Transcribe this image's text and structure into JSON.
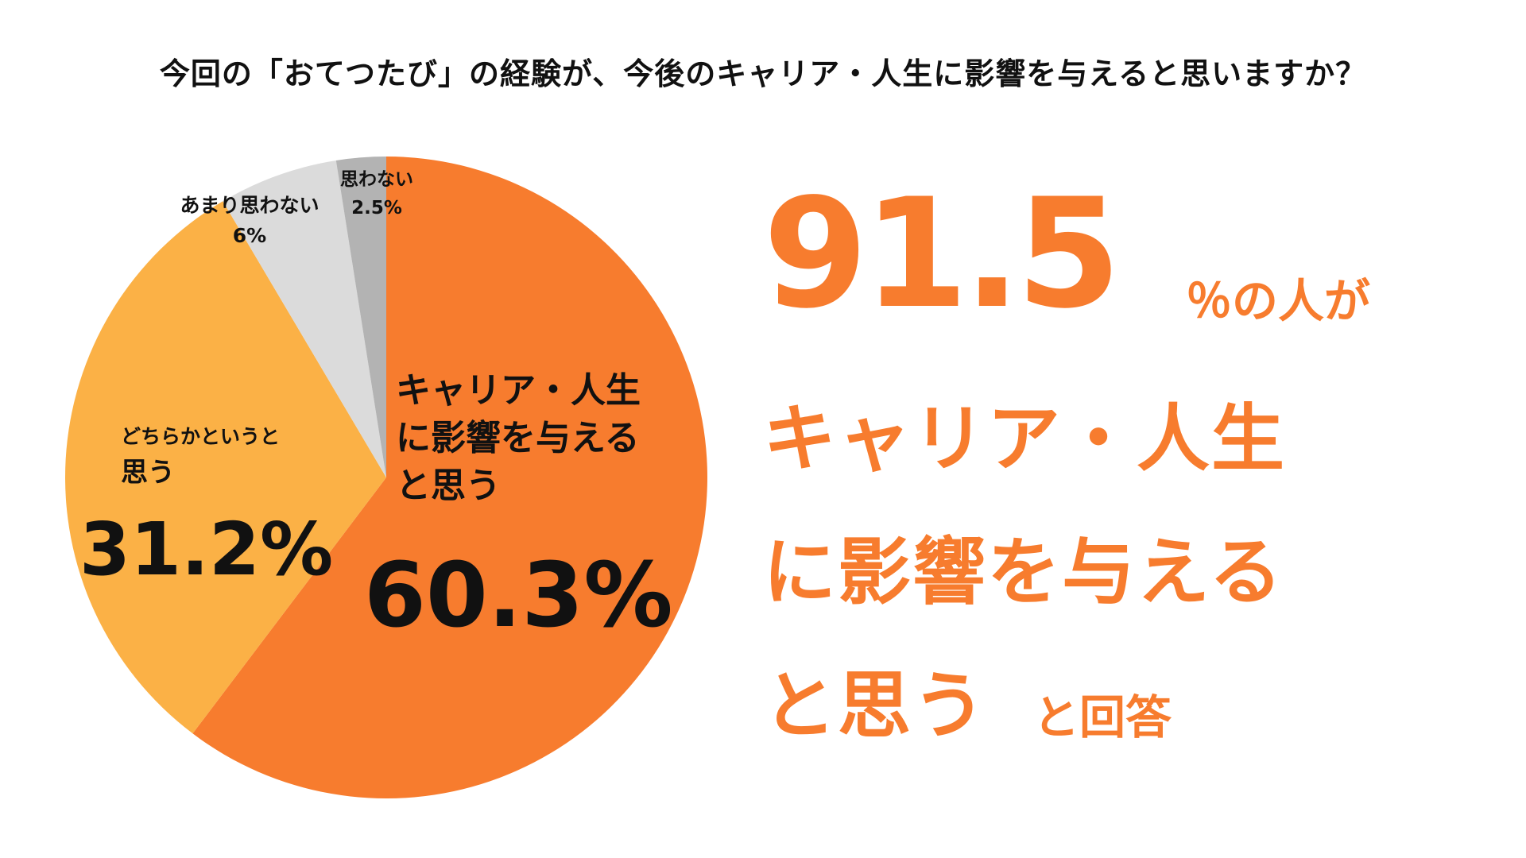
{
  "title": "今回の「おてつたび」の経験が、今後のキャリア・人生に影響を与えると思いますか？",
  "labels": {
    "slice_yes": {
      "line1": "キャリア・人生",
      "line2": "に影響を与える",
      "line3": "と思う",
      "pct": "60.3%"
    },
    "slice_somewhat": {
      "line1": "どちらかというと",
      "line2": "思う",
      "pct": "31.2%"
    },
    "slice_not_much": {
      "line1": "あまり思わない",
      "pct": "6%"
    },
    "slice_no": {
      "line1": "思わない",
      "pct": "2.5%"
    }
  },
  "headline": {
    "number": "91.5",
    "suffix": "％の人が",
    "line1": "キャリア・人生",
    "line2": "に影響を与える",
    "line3": "と思う",
    "end": "と回答"
  },
  "colors": {
    "accent": "#F77C2E",
    "light_orange": "#FBB146",
    "light_gray": "#DBDBDB",
    "mid_gray": "#B3B3B3"
  },
  "chart_data": {
    "type": "pie",
    "title": "今回の「おてつたび」の経験が、今後のキャリア・人生に影響を与えると思いますか？",
    "categories": [
      "キャリア・人生に影響を与えると思う",
      "どちらかというと思う",
      "あまり思わない",
      "思わない"
    ],
    "values": [
      60.3,
      31.2,
      6,
      2.5
    ],
    "colors": [
      "#F77C2E",
      "#FBB146",
      "#DBDBDB",
      "#B3B3B3"
    ],
    "start": "top",
    "direction": "clockwise"
  }
}
